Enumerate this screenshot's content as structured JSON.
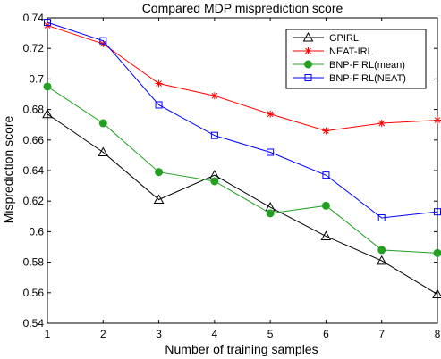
{
  "chart_data": {
    "type": "line",
    "title": "Compared MDP misprediction score",
    "xlabel": "Number of training samples",
    "ylabel": "Misprediction score",
    "x": [
      1,
      2,
      3,
      4,
      5,
      6,
      7,
      8
    ],
    "xlim": [
      1,
      8
    ],
    "ylim": [
      0.54,
      0.74
    ],
    "xticks": [
      "1",
      "2",
      "3",
      "4",
      "5",
      "6",
      "7",
      "8"
    ],
    "yticks": [
      "0.54",
      "0.56",
      "0.58",
      "0.6",
      "0.62",
      "0.64",
      "0.66",
      "0.68",
      "0.7",
      "0.72",
      "0.74"
    ],
    "grid": false,
    "legend_position": "top-right",
    "series": [
      {
        "name": "GPIRL",
        "color": "#000000",
        "marker": "triangle",
        "values": [
          0.677,
          0.652,
          0.621,
          0.637,
          0.616,
          0.597,
          0.581,
          0.559
        ]
      },
      {
        "name": "NEAT-IRL",
        "color": "#ff0000",
        "marker": "asterisk",
        "values": [
          0.735,
          0.723,
          0.697,
          0.689,
          0.677,
          0.666,
          0.671,
          0.673
        ]
      },
      {
        "name": "BNP-FIRL(mean)",
        "color": "#22a022",
        "marker": "circle",
        "values": [
          0.695,
          0.671,
          0.639,
          0.633,
          0.612,
          0.617,
          0.588,
          0.586
        ]
      },
      {
        "name": "BNP-FIRL(NEAT)",
        "color": "#0000ff",
        "marker": "square",
        "values": [
          0.737,
          0.725,
          0.683,
          0.663,
          0.652,
          0.637,
          0.609,
          0.613
        ]
      }
    ]
  }
}
